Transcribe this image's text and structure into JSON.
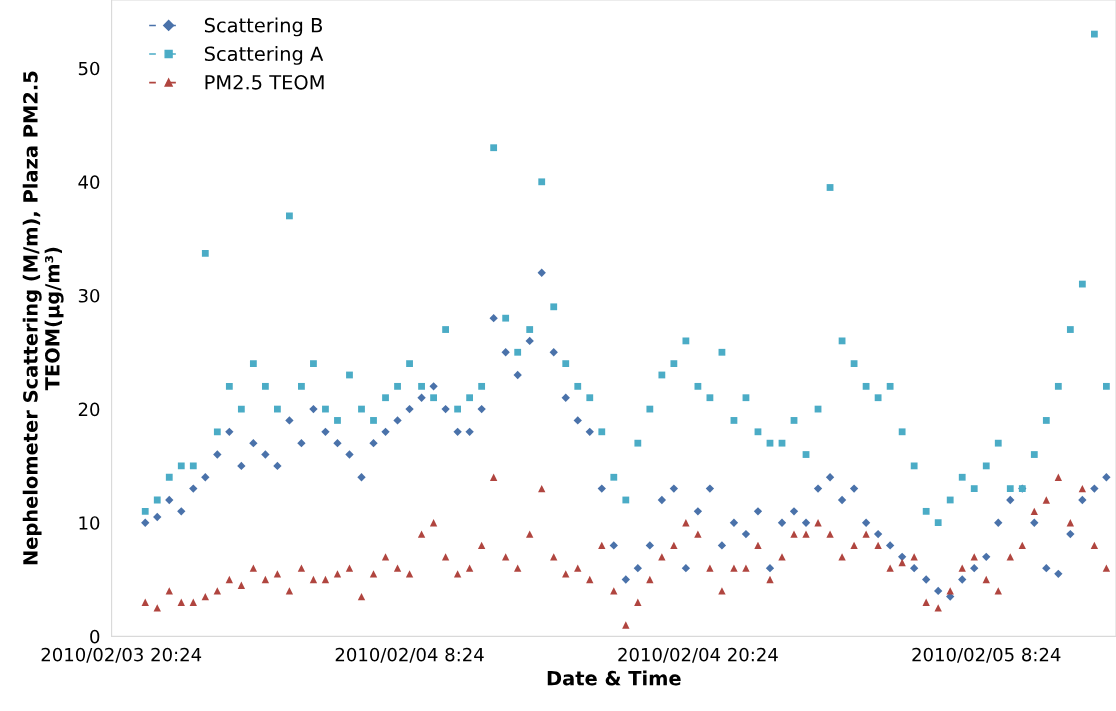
{
  "chart_data": {
    "type": "scatter",
    "xlabel": "Date & Time",
    "ylabel": "Nephelometer Scattering (M/m), Plaza PM2.5\nTEOM(μg/m³)",
    "x": [
      "2010-02-03T21:24",
      "2010-02-03T21:54",
      "2010-02-03T22:24",
      "2010-02-03T22:54",
      "2010-02-03T23:24",
      "2010-02-03T23:54",
      "2010-02-04T00:24",
      "2010-02-04T00:54",
      "2010-02-04T01:24",
      "2010-02-04T01:54",
      "2010-02-04T02:24",
      "2010-02-04T02:54",
      "2010-02-04T03:24",
      "2010-02-04T03:54",
      "2010-02-04T04:24",
      "2010-02-04T04:54",
      "2010-02-04T05:24",
      "2010-02-04T05:54",
      "2010-02-04T06:24",
      "2010-02-04T06:54",
      "2010-02-04T07:24",
      "2010-02-04T07:54",
      "2010-02-04T08:24",
      "2010-02-04T08:54",
      "2010-02-04T09:24",
      "2010-02-04T09:54",
      "2010-02-04T10:24",
      "2010-02-04T10:54",
      "2010-02-04T11:24",
      "2010-02-04T11:54",
      "2010-02-04T12:24",
      "2010-02-04T12:54",
      "2010-02-04T13:24",
      "2010-02-04T13:54",
      "2010-02-04T14:24",
      "2010-02-04T14:54",
      "2010-02-04T15:24",
      "2010-02-04T15:54",
      "2010-02-04T16:24",
      "2010-02-04T16:54",
      "2010-02-04T17:24",
      "2010-02-04T17:54",
      "2010-02-04T18:24",
      "2010-02-04T18:54",
      "2010-02-04T19:24",
      "2010-02-04T19:54",
      "2010-02-04T20:24",
      "2010-02-04T20:54",
      "2010-02-04T21:24",
      "2010-02-04T21:54",
      "2010-02-04T22:24",
      "2010-02-04T22:54",
      "2010-02-04T23:24",
      "2010-02-04T23:54",
      "2010-02-05T00:24",
      "2010-02-05T00:54",
      "2010-02-05T01:24",
      "2010-02-05T01:54",
      "2010-02-05T02:24",
      "2010-02-05T02:54",
      "2010-02-05T03:24",
      "2010-02-05T03:54",
      "2010-02-05T04:24",
      "2010-02-05T04:54",
      "2010-02-05T05:24",
      "2010-02-05T05:54",
      "2010-02-05T06:24",
      "2010-02-05T06:54",
      "2010-02-05T07:24",
      "2010-02-05T07:54",
      "2010-02-05T08:24",
      "2010-02-05T08:54",
      "2010-02-05T09:24",
      "2010-02-05T09:54",
      "2010-02-05T10:24",
      "2010-02-05T10:54",
      "2010-02-05T11:24",
      "2010-02-05T11:54",
      "2010-02-05T12:24",
      "2010-02-05T12:54",
      "2010-02-05T13:24"
    ],
    "series": [
      {
        "name": "Scattering B",
        "color": "#4a72aa",
        "marker": "diamond",
        "values": [
          10,
          10.5,
          12,
          11,
          13,
          14,
          16,
          18,
          15,
          17,
          16,
          15,
          19,
          17,
          20,
          18,
          17,
          16,
          14,
          17,
          18,
          19,
          20,
          21,
          22,
          20,
          18,
          18,
          20,
          28,
          25,
          23,
          26,
          32,
          25,
          21,
          19,
          18,
          13,
          8,
          5,
          6,
          8,
          12,
          13,
          6,
          11,
          13,
          8,
          10,
          9,
          11,
          6,
          10,
          11,
          10,
          13,
          14,
          12,
          13,
          10,
          9,
          8,
          7,
          6,
          5,
          4,
          3.5,
          5,
          6,
          7,
          10,
          12,
          13,
          10,
          6,
          5.5,
          9,
          12,
          13,
          14
        ]
      },
      {
        "name": "Scattering A",
        "color": "#4bacc6",
        "marker": "square",
        "values": [
          11,
          12,
          14,
          15,
          15,
          33.7,
          18,
          22,
          20,
          24,
          22,
          20,
          37,
          22,
          24,
          20,
          19,
          23,
          20,
          19,
          21,
          22,
          24,
          22,
          21,
          27,
          20,
          21,
          22,
          43,
          28,
          25,
          27,
          40,
          29,
          24,
          22,
          21,
          18,
          14,
          12,
          17,
          20,
          23,
          24,
          26,
          22,
          21,
          25,
          19,
          21,
          18,
          17,
          17,
          19,
          16,
          20,
          39.5,
          26,
          24,
          22,
          21,
          22,
          18,
          15,
          11,
          10,
          12,
          14,
          13,
          15,
          17,
          13,
          13,
          16,
          19,
          22,
          27,
          31,
          53,
          22
        ]
      },
      {
        "name": "PM2.5 TEOM",
        "color": "#b0453f",
        "marker": "triangle",
        "values": [
          3,
          2.5,
          4,
          3,
          3,
          3.5,
          4,
          5,
          4.5,
          6,
          5,
          5.5,
          4,
          6,
          5,
          5,
          5.5,
          6,
          3.5,
          5.5,
          7,
          6,
          5.5,
          9,
          10,
          7,
          5.5,
          6,
          8,
          14,
          7,
          6,
          9,
          13,
          7,
          5.5,
          6,
          5,
          8,
          4,
          1,
          3,
          5,
          7,
          8,
          10,
          9,
          6,
          4,
          6,
          6,
          8,
          5,
          7,
          9,
          9,
          10,
          9,
          7,
          8,
          9,
          8,
          6,
          6.5,
          7,
          3,
          2.5,
          4,
          6,
          7,
          5,
          4,
          7,
          8,
          11,
          12,
          14,
          10,
          13,
          8,
          6
        ]
      }
    ],
    "xlim": [
      "2010-02-03T20:00",
      "2010-02-05T13:48"
    ],
    "xticks": [
      {
        "value": "2010-02-03T20:24",
        "label": "2010/02/03 20:24"
      },
      {
        "value": "2010-02-04T08:24",
        "label": "2010/02/04 8:24"
      },
      {
        "value": "2010-02-04T20:24",
        "label": "2010/02/04 20:24"
      },
      {
        "value": "2010-02-05T08:24",
        "label": "2010/02/05 8:24"
      }
    ],
    "ylim": [
      0,
      56
    ],
    "yticks": [
      0,
      10,
      20,
      30,
      40,
      50
    ],
    "grid": false,
    "legend": "top left"
  }
}
